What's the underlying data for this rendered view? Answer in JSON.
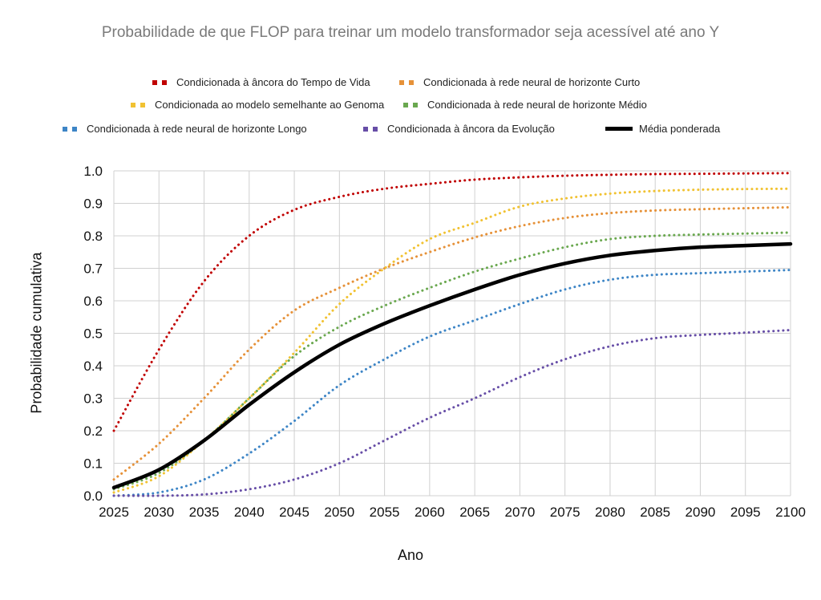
{
  "chart_data": {
    "type": "line",
    "title": "Probabilidade de que FLOP para treinar um modelo transformador seja acessível até ano Y",
    "xlabel": "Ano",
    "ylabel": "Probabilidade cumulativa",
    "xlim": [
      2025,
      2100
    ],
    "ylim": [
      0,
      1
    ],
    "grid": true,
    "legend_position": "top",
    "x_ticks": [
      "2025",
      "2030",
      "2035",
      "2040",
      "2045",
      "2050",
      "2055",
      "2060",
      "2065",
      "2070",
      "2075",
      "2080",
      "2085",
      "2090",
      "2095",
      "2100"
    ],
    "y_ticks": [
      "0.0",
      "0.1",
      "0.2",
      "0.3",
      "0.4",
      "0.5",
      "0.6",
      "0.7",
      "0.8",
      "0.9",
      "1.0"
    ],
    "x": [
      2025,
      2030,
      2035,
      2040,
      2045,
      2050,
      2055,
      2060,
      2065,
      2070,
      2075,
      2080,
      2085,
      2090,
      2095,
      2100
    ],
    "series": [
      {
        "name": "Condicionada à âncora do Tempo de Vida",
        "color": "#c00000",
        "style": "dotted",
        "values": [
          0.2,
          0.45,
          0.66,
          0.8,
          0.88,
          0.92,
          0.945,
          0.96,
          0.973,
          0.98,
          0.985,
          0.988,
          0.99,
          0.991,
          0.992,
          0.993
        ]
      },
      {
        "name": "Condicionada à rede neural de horizonte Curto",
        "color": "#e69138",
        "style": "dotted",
        "values": [
          0.05,
          0.16,
          0.3,
          0.45,
          0.57,
          0.64,
          0.7,
          0.75,
          0.795,
          0.83,
          0.855,
          0.87,
          0.878,
          0.882,
          0.885,
          0.888
        ]
      },
      {
        "name": "Condicionada ao modelo semelhante ao Genoma",
        "color": "#f1c232",
        "style": "dotted",
        "values": [
          0.01,
          0.06,
          0.17,
          0.3,
          0.44,
          0.59,
          0.7,
          0.79,
          0.84,
          0.89,
          0.915,
          0.93,
          0.938,
          0.942,
          0.944,
          0.945
        ]
      },
      {
        "name": "Condicionada à rede neural de horizonte Médio",
        "color": "#6aa84f",
        "style": "dotted",
        "values": [
          0.02,
          0.07,
          0.17,
          0.3,
          0.43,
          0.52,
          0.585,
          0.64,
          0.69,
          0.73,
          0.765,
          0.79,
          0.8,
          0.804,
          0.807,
          0.81
        ]
      },
      {
        "name": "Condicionada à rede neural de horizonte Longo",
        "color": "#3d85c6",
        "style": "dotted",
        "values": [
          0.0,
          0.01,
          0.05,
          0.13,
          0.23,
          0.34,
          0.42,
          0.49,
          0.54,
          0.59,
          0.635,
          0.665,
          0.68,
          0.685,
          0.69,
          0.695
        ]
      },
      {
        "name": "Condicionada à âncora da Evolução",
        "color": "#674ea7",
        "style": "dotted",
        "values": [
          0.0,
          0.0,
          0.004,
          0.02,
          0.05,
          0.1,
          0.17,
          0.24,
          0.3,
          0.365,
          0.42,
          0.46,
          0.485,
          0.495,
          0.502,
          0.51
        ]
      },
      {
        "name": "Média ponderada",
        "color": "#000000",
        "style": "solid",
        "values": [
          0.025,
          0.08,
          0.17,
          0.28,
          0.38,
          0.465,
          0.53,
          0.585,
          0.635,
          0.68,
          0.715,
          0.74,
          0.755,
          0.765,
          0.77,
          0.775
        ]
      }
    ]
  }
}
